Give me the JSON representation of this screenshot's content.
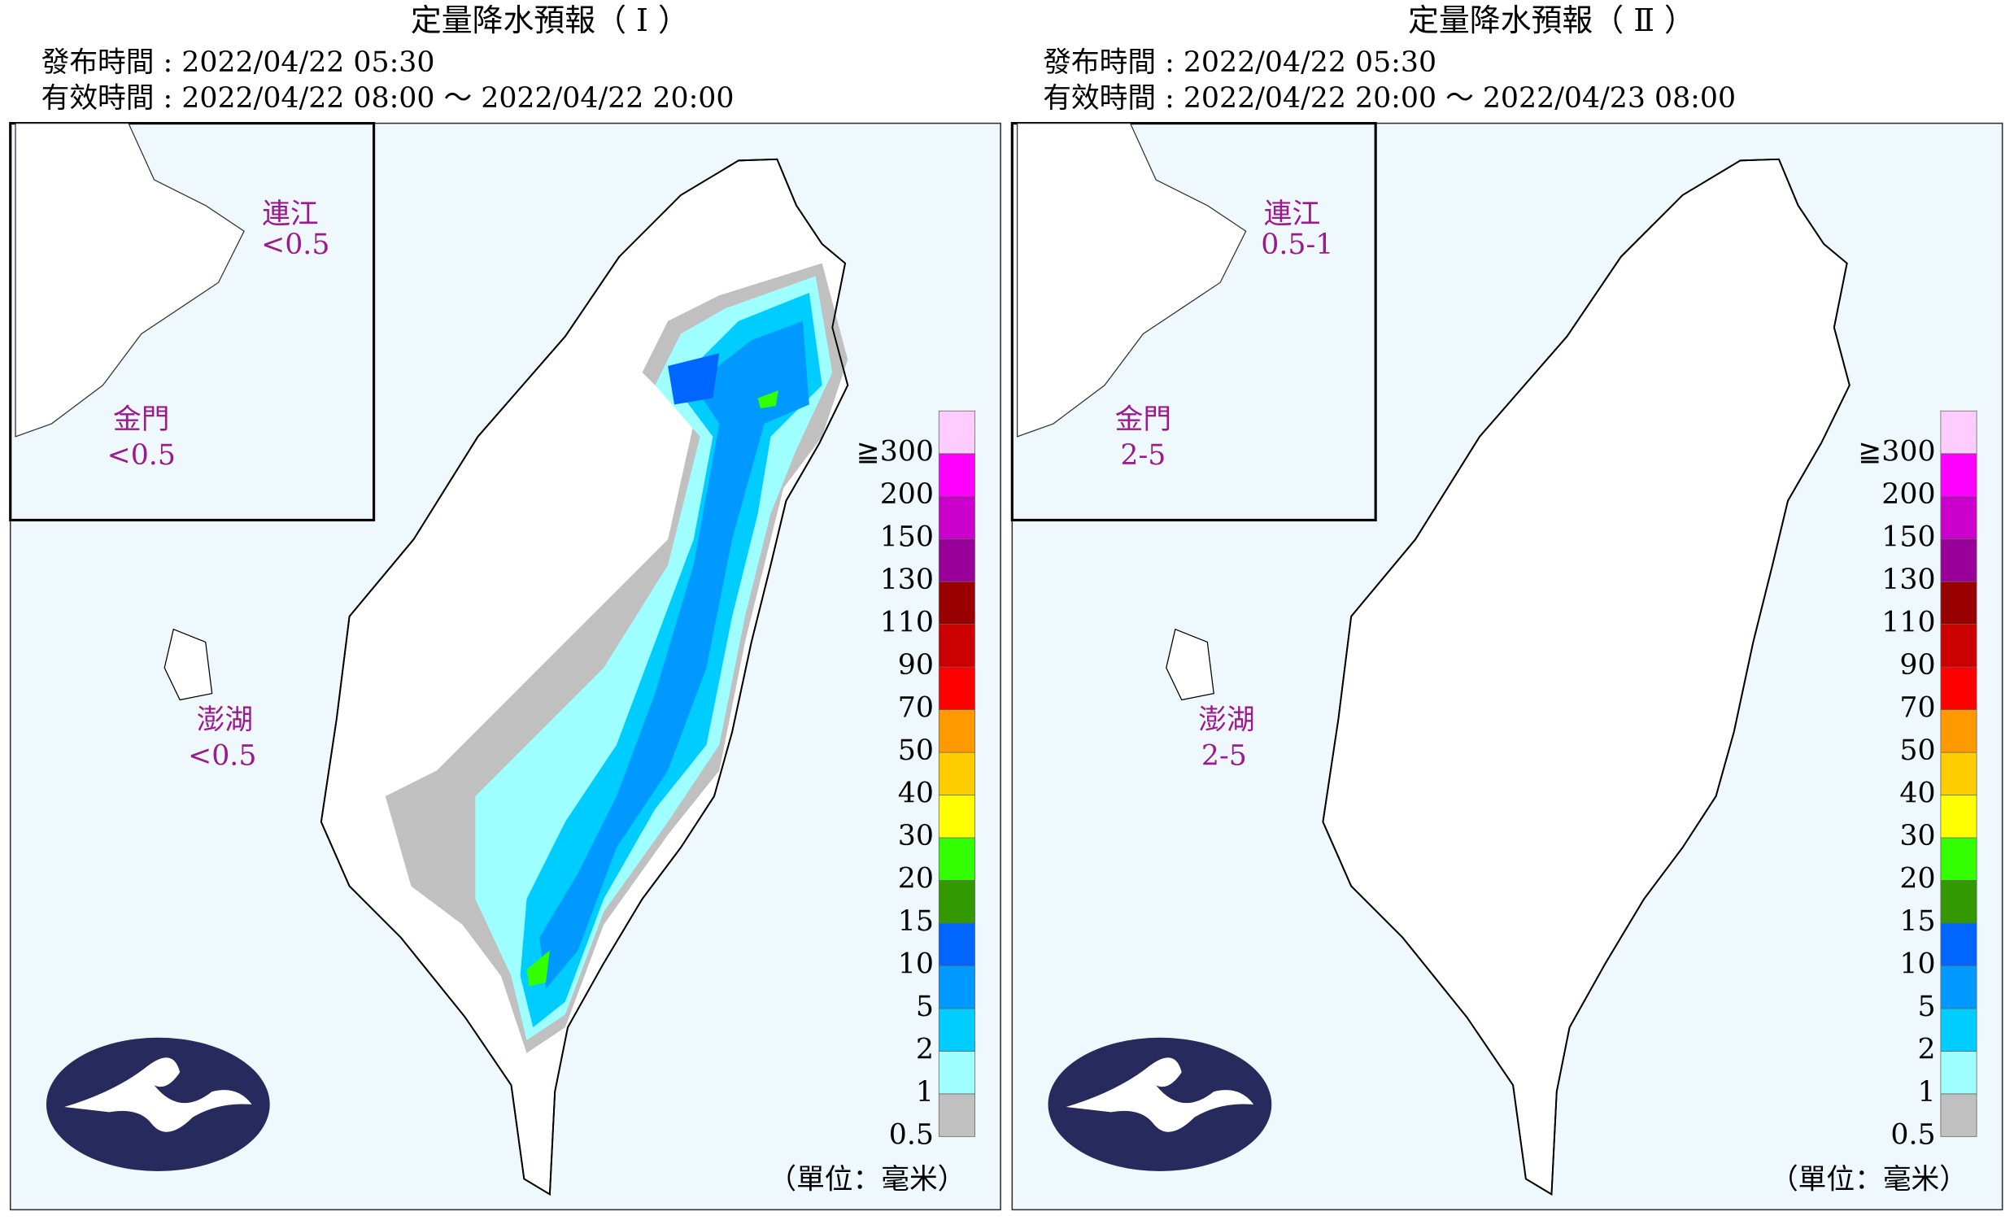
{
  "panels": [
    {
      "title": "定量降水預報（ Ⅰ ）",
      "issue": "發布時間 : 2022/04/22 05:30",
      "valid": "有效時間 : 2022/04/22 08:00 ～ 2022/04/22 20:00",
      "islands": [
        {
          "name": "連江",
          "amount": "<0.5"
        },
        {
          "name": "金門",
          "amount": "<0.5"
        },
        {
          "name": "澎湖",
          "amount": "<0.5"
        }
      ],
      "unit": "（單位：毫米）"
    },
    {
      "title": "定量降水預報（ Ⅱ ）",
      "issue": "發布時間 : 2022/04/22 05:30",
      "valid": "有效時間 : 2022/04/22 20:00 ～ 2022/04/23 08:00",
      "islands": [
        {
          "name": "連江",
          "amount": "0.5-1"
        },
        {
          "name": "金門",
          "amount": "2-5"
        },
        {
          "name": "澎湖",
          "amount": "2-5"
        }
      ],
      "unit": "（單位：毫米）"
    }
  ],
  "legend": {
    "labels": [
      "0.5",
      "1",
      "2",
      "5",
      "10",
      "15",
      "20",
      "30",
      "40",
      "50",
      "70",
      "90",
      "110",
      "130",
      "150",
      "200",
      "≧300"
    ],
    "colors": [
      "#c0c0c0",
      "#9ffeff",
      "#00cdff",
      "#0099ff",
      "#0166ff",
      "#329900",
      "#33ff00",
      "#ffff00",
      "#ffcc00",
      "#ff9900",
      "#ff0000",
      "#cc0000",
      "#990000",
      "#990099",
      "#cc00cc",
      "#ff00ff",
      "#ffccff"
    ]
  }
}
